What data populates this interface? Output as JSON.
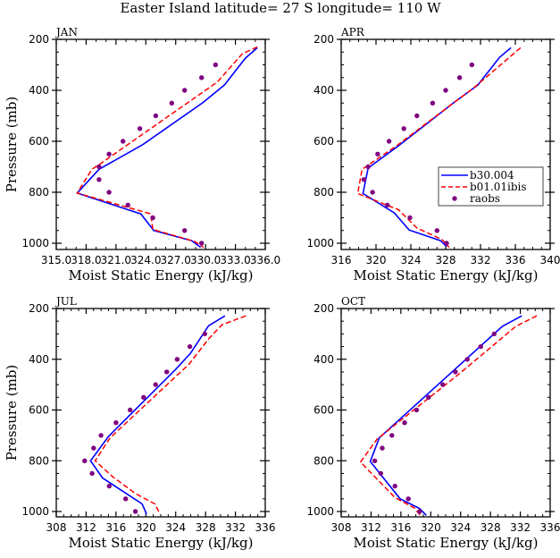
{
  "title": "Easter Island  latitude= 27 S longitude= 110 W",
  "colors": {
    "b30": "#0000ff",
    "b01": "#ff0000",
    "raobs": "#800080",
    "axis": "#000000"
  },
  "legend": {
    "panel": "APR",
    "entries": [
      {
        "label": "b30.004",
        "style": "solid-line",
        "color": "#0000ff"
      },
      {
        "label": "b01.01ibis",
        "style": "dashed-line",
        "color": "#ff0000"
      },
      {
        "label": "raobs",
        "style": "dot",
        "color": "#800080"
      }
    ]
  },
  "chart_data": [
    {
      "type": "line",
      "panel_label": "JAN",
      "xlabel": "Moist Static Energy (kJ/kg)",
      "ylabel": "Pressure (mb)",
      "xlim": [
        315,
        336
      ],
      "xticks": [
        315,
        318,
        321,
        324,
        327,
        330,
        333,
        336
      ],
      "xtick_labels": [
        "315.0",
        "318.0",
        "321.0",
        "324.0",
        "327.0",
        "330.0",
        "333.0",
        "336.0"
      ],
      "ylim": [
        1000,
        200
      ],
      "yticks": [
        200,
        400,
        600,
        800,
        1000
      ],
      "series": [
        {
          "name": "b30.004",
          "style": "line",
          "x": [
            335.2,
            334.0,
            331.9,
            329.7,
            323.7,
            319.3,
            317.1,
            323.5,
            324.8,
            328.6,
            329.5
          ],
          "p": [
            233,
            274,
            379,
            449,
            613,
            710,
            803,
            885,
            950,
            990,
            1016
          ]
        },
        {
          "name": "b01.01ibis",
          "style": "dashed",
          "x": [
            335.2,
            333.7,
            331.2,
            319.4,
            318.6,
            317.1,
            324.5,
            324.7,
            328.9,
            329.8
          ],
          "p": [
            230,
            256,
            367,
            689,
            709,
            803,
            885,
            946,
            993,
            1016
          ]
        },
        {
          "name": "raobs",
          "style": "markers",
          "x": [
            331.0,
            329.6,
            327.9,
            326.6,
            325.0,
            323.4,
            321.7,
            320.3,
            319.3,
            319.3,
            320.3,
            322.2,
            324.7,
            327.9,
            329.6
          ],
          "p": [
            300,
            350,
            400,
            450,
            500,
            550,
            600,
            650,
            700,
            750,
            800,
            850,
            900,
            950,
            1000
          ]
        }
      ]
    },
    {
      "type": "line",
      "panel_label": "APR",
      "xlabel": "Moist Static Energy (kJ/kg)",
      "ylabel": "",
      "xlim": [
        316,
        340
      ],
      "xticks": [
        316,
        320,
        324,
        328,
        332,
        336,
        340
      ],
      "xtick_labels": [
        "316",
        "320",
        "324",
        "328",
        "332",
        "336",
        "340"
      ],
      "ylim": [
        1000,
        200
      ],
      "yticks": [
        200,
        400,
        600,
        800,
        1000
      ],
      "series": [
        {
          "name": "b30.004",
          "style": "line",
          "x": [
            335.5,
            334.2,
            331.7,
            328.8,
            322.6,
            319.1,
            318.5,
            322.1,
            323.8,
            327.4,
            328.1
          ],
          "p": [
            233,
            270,
            379,
            452,
            617,
            705,
            805,
            881,
            948,
            990,
            1013
          ]
        },
        {
          "name": "b01.01ibis",
          "style": "dashed",
          "x": [
            336.6,
            331.1,
            328.8,
            322.4,
            318.4,
            317.9,
            322.6,
            324.7,
            327.6,
            328.4
          ],
          "p": [
            233,
            394,
            452,
            617,
            710,
            805,
            869,
            940,
            986,
            1016
          ]
        },
        {
          "name": "raobs",
          "style": "markers",
          "x": [
            331.0,
            329.6,
            328.0,
            326.5,
            324.7,
            323.2,
            321.5,
            320.2,
            319.1,
            318.6,
            319.6,
            321.3,
            323.9,
            327.0,
            328.1
          ],
          "p": [
            300,
            350,
            400,
            450,
            500,
            550,
            600,
            650,
            700,
            750,
            800,
            850,
            900,
            950,
            1000
          ]
        }
      ]
    },
    {
      "type": "line",
      "panel_label": "JUL",
      "xlabel": "Moist Static Energy (kJ/kg)",
      "ylabel": "Pressure (mb)",
      "xlim": [
        308,
        336
      ],
      "xticks": [
        308,
        312,
        316,
        320,
        324,
        328,
        332,
        336
      ],
      "xtick_labels": [
        "308",
        "312",
        "316",
        "320",
        "324",
        "328",
        "332",
        "336"
      ],
      "ylim": [
        1000,
        200
      ],
      "yticks": [
        200,
        400,
        600,
        800,
        1000
      ],
      "series": [
        {
          "name": "b30.004",
          "style": "line",
          "x": [
            330.6,
            328.4,
            326.0,
            324.0,
            315.0,
            312.6,
            314.2,
            319.5,
            320.1
          ],
          "p": [
            229,
            268,
            376,
            440,
            704,
            800,
            868,
            970,
            1010
          ]
        },
        {
          "name": "b01.01ibis",
          "style": "dashed",
          "x": [
            333.4,
            330.2,
            328.4,
            325.8,
            315.2,
            313.2,
            315.6,
            318.6,
            321.2,
            321.9
          ],
          "p": [
            229,
            264,
            320,
            419,
            710,
            800,
            864,
            929,
            970,
            1010
          ]
        },
        {
          "name": "raobs",
          "style": "markers",
          "x": [
            327.9,
            325.9,
            324.2,
            322.8,
            321.3,
            319.7,
            317.9,
            316.0,
            314.0,
            313.0,
            311.8,
            312.8,
            315.1,
            317.3,
            318.6
          ],
          "p": [
            300,
            350,
            400,
            450,
            500,
            550,
            600,
            650,
            700,
            750,
            800,
            850,
            900,
            950,
            1000
          ]
        }
      ]
    },
    {
      "type": "line",
      "panel_label": "OCT",
      "xlabel": "Moist Static Energy (kJ/kg)",
      "ylabel": "",
      "xlim": [
        308,
        336
      ],
      "xticks": [
        308,
        312,
        316,
        320,
        324,
        328,
        332,
        336
      ],
      "xtick_labels": [
        "308",
        "312",
        "316",
        "320",
        "324",
        "328",
        "332",
        "336"
      ],
      "ylim": [
        1000,
        200
      ],
      "yticks": [
        200,
        400,
        600,
        800,
        1000
      ],
      "series": [
        {
          "name": "b30.004",
          "style": "line",
          "x": [
            332.2,
            329.6,
            313.1,
            311.9,
            315.9,
            318.5,
            319.4
          ],
          "p": [
            229,
            270,
            710,
            803,
            950,
            988,
            1015
          ]
        },
        {
          "name": "b01.01ibis",
          "style": "dashed",
          "x": [
            334.2,
            331.4,
            323.7,
            312.8,
            310.6,
            315.2,
            317.8,
            318.6
          ],
          "p": [
            229,
            270,
            460,
            715,
            805,
            945,
            986,
            1016
          ]
        },
        {
          "name": "raobs",
          "style": "markers",
          "x": [
            328.5,
            326.7,
            324.9,
            323.3,
            321.6,
            319.7,
            318.1,
            316.5,
            314.8,
            313.5,
            312.5,
            313.3,
            315.2,
            317.0,
            318.5
          ],
          "p": [
            300,
            350,
            400,
            450,
            500,
            550,
            600,
            650,
            700,
            750,
            800,
            850,
            900,
            950,
            1000
          ]
        }
      ]
    }
  ]
}
